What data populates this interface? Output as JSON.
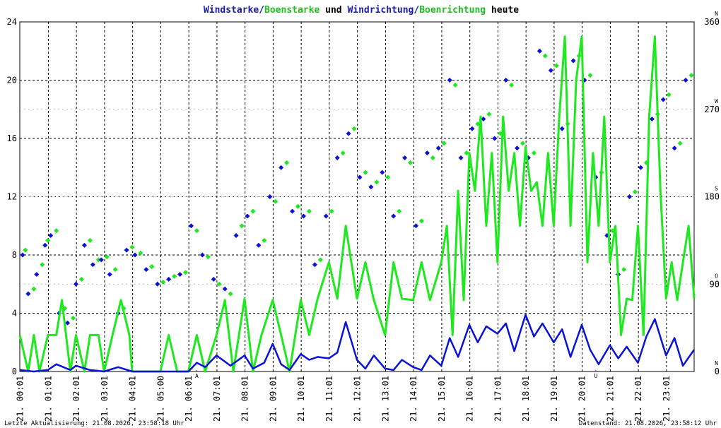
{
  "title": {
    "part1": "Windstarke/",
    "part2": "Boenstarke",
    "part3": " und ",
    "part4": "Windrichtung/",
    "part5": "Boenrichtung",
    "part6": " heute"
  },
  "footer": {
    "left": "Letzte Aktualisierung: 21.08.2026, 23:58:18 Uhr",
    "right": "Datenstand: 21.08.2026, 23:58:12 Uhr"
  },
  "markers": {
    "sunrise": "A",
    "sunset": "U"
  },
  "colors": {
    "wind": "#0a12d6",
    "gust": "#1ee81e",
    "grid": "#000000",
    "marker": "#cc0000",
    "title_blue": "#1a1aa8",
    "title_green": "#22bb22"
  },
  "chart_data": {
    "type": "line",
    "ylim_left": [
      0,
      24
    ],
    "yticks_left": [
      "0",
      "4",
      "8",
      "12",
      "16",
      "20",
      "24"
    ],
    "ylim_right": [
      0,
      360
    ],
    "yticks_right": [
      "0",
      "90",
      "180",
      "270",
      "360"
    ],
    "right_compass": [
      "N",
      "O",
      "S",
      "W",
      "N"
    ],
    "x_labels": [
      "21. 00:01",
      "21. 01:01",
      "21. 02:01",
      "21. 03:01",
      "21. 04:01",
      "21. 05:00",
      "21. 06:01",
      "21. 07:01",
      "21. 08:01",
      "21. 09:01",
      "21. 10:01",
      "21. 11:01",
      "21. 12:01",
      "21. 13:01",
      "21. 14:01",
      "21. 15:01",
      "21. 16:01",
      "21. 17:01",
      "21. 18:01",
      "21. 19:01",
      "21. 20:01",
      "21. 21:01",
      "21. 22:01",
      "21. 23:01"
    ],
    "grid": true,
    "sunrise_hour": 6.3,
    "sunset_hour": 20.5,
    "series_wind": {
      "hours": [
        0,
        0.5,
        1,
        1.3,
        1.8,
        2,
        2.5,
        3,
        3.5,
        4,
        5,
        6,
        6.3,
        6.6,
        7,
        7.5,
        8,
        8.3,
        8.7,
        9,
        9.3,
        9.6,
        10,
        10.3,
        10.6,
        11,
        11.3,
        11.6,
        12,
        12.3,
        12.6,
        13,
        13.3,
        13.6,
        14,
        14.3,
        14.6,
        15,
        15.3,
        15.6,
        16,
        16.3,
        16.6,
        17,
        17.3,
        17.6,
        18,
        18.3,
        18.6,
        19,
        19.3,
        19.6,
        20,
        20.3,
        20.6,
        21,
        21.3,
        21.6,
        22,
        22.3,
        22.6,
        23,
        23.3,
        23.6,
        24
      ],
      "values": [
        0.1,
        0,
        0.1,
        0.5,
        0.1,
        0.4,
        0.1,
        0,
        0.3,
        0,
        0,
        0,
        0.6,
        0.3,
        1.1,
        0.4,
        1.1,
        0.2,
        0.6,
        1.9,
        0.5,
        0.1,
        1.2,
        0.8,
        1.0,
        0.9,
        1.3,
        3.4,
        0.8,
        0.2,
        1.1,
        0.2,
        0.1,
        0.8,
        0.3,
        0.1,
        1.1,
        0.4,
        2.3,
        1.0,
        3.2,
        2.0,
        3.1,
        2.6,
        3.3,
        1.4,
        3.9,
        2.4,
        3.3,
        2.0,
        2.9,
        1.0,
        3.2,
        1.5,
        0.5,
        1.8,
        0.9,
        1.7,
        0.6,
        2.4,
        3.6,
        1.1,
        2.3,
        0.4,
        1.5
      ]
    },
    "series_gust": {
      "hours": [
        0,
        0.3,
        0.5,
        0.7,
        1,
        1.3,
        1.5,
        1.8,
        2,
        2.3,
        2.5,
        2.8,
        3,
        3.3,
        3.6,
        3.9,
        4,
        5,
        5.3,
        5.6,
        6,
        6.3,
        6.6,
        7,
        7.3,
        7.6,
        8,
        8.3,
        8.6,
        9,
        9.3,
        9.6,
        10,
        10.3,
        10.6,
        11,
        11.3,
        11.6,
        12,
        12.3,
        12.6,
        13,
        13.3,
        13.6,
        14,
        14.3,
        14.6,
        15,
        15.2,
        15.4,
        15.6,
        15.8,
        16,
        16.2,
        16.4,
        16.6,
        16.8,
        17,
        17.2,
        17.4,
        17.6,
        17.8,
        18,
        18.2,
        18.4,
        18.6,
        18.8,
        19,
        19.2,
        19.4,
        19.6,
        19.8,
        20,
        20.2,
        20.4,
        20.6,
        20.8,
        21,
        21.2,
        21.4,
        21.6,
        21.8,
        22,
        22.2,
        22.4,
        22.6,
        22.8,
        23,
        23.2,
        23.4,
        23.6,
        23.8,
        24
      ],
      "values": [
        2.5,
        0,
        2.5,
        0,
        2.5,
        2.5,
        4.9,
        0,
        2.5,
        0,
        2.5,
        2.5,
        0,
        2.5,
        4.9,
        2.5,
        0,
        0,
        2.5,
        0,
        0,
        2.5,
        0,
        2.5,
        4.9,
        0,
        5.0,
        0,
        2.5,
        4.9,
        2.5,
        0,
        4.9,
        2.5,
        5.0,
        7.5,
        5.0,
        10.0,
        5.0,
        7.5,
        4.9,
        2.5,
        7.5,
        5.0,
        4.9,
        7.5,
        4.9,
        7.5,
        10.0,
        2.5,
        12.4,
        4.9,
        15.0,
        12.4,
        17.5,
        10.0,
        15.0,
        7.5,
        17.5,
        12.4,
        15.0,
        10.0,
        15.4,
        12.4,
        13.0,
        10.0,
        15.0,
        10.0,
        17.5,
        23.0,
        10.0,
        20.0,
        23.0,
        7.5,
        15.0,
        10.0,
        17.5,
        7.5,
        10.0,
        2.5,
        5.0,
        4.9,
        10.0,
        2.5,
        17.5,
        23.0,
        12.4,
        5.0,
        7.5,
        4.9,
        7.5,
        10.0,
        5.0
      ]
    },
    "scatter_wind_dir": {
      "hours": [
        0.1,
        0.3,
        0.6,
        0.9,
        1.1,
        1.4,
        1.7,
        2.0,
        2.3,
        2.6,
        2.9,
        3.2,
        3.5,
        3.8,
        4.1,
        4.5,
        4.9,
        5.3,
        5.7,
        6.1,
        6.5,
        6.9,
        7.3,
        7.7,
        8.1,
        8.5,
        8.9,
        9.3,
        9.7,
        10.1,
        10.5,
        10.9,
        11.3,
        11.7,
        12.1,
        12.5,
        12.9,
        13.3,
        13.7,
        14.1,
        14.5,
        14.9,
        15.3,
        15.7,
        16.1,
        16.5,
        16.9,
        17.3,
        17.7,
        18.1,
        18.5,
        18.9,
        19.3,
        19.7,
        20.1,
        20.5,
        20.9,
        21.3,
        21.7,
        22.1,
        22.5,
        22.9,
        23.3,
        23.7
      ],
      "values": [
        120,
        80,
        100,
        130,
        140,
        60,
        50,
        90,
        130,
        110,
        115,
        100,
        60,
        125,
        120,
        105,
        90,
        95,
        100,
        150,
        120,
        95,
        85,
        140,
        160,
        130,
        180,
        210,
        165,
        160,
        110,
        160,
        220,
        245,
        200,
        190,
        205,
        160,
        220,
        150,
        225,
        230,
        300,
        220,
        250,
        260,
        240,
        300,
        230,
        220,
        330,
        310,
        250,
        320,
        300,
        200,
        140,
        100,
        180,
        210,
        260,
        280,
        230,
        300
      ]
    },
    "scatter_gust_dir": {
      "hours": [
        0.2,
        0.5,
        0.8,
        1.0,
        1.3,
        1.6,
        1.9,
        2.2,
        2.5,
        2.8,
        3.1,
        3.4,
        3.7,
        4.0,
        4.3,
        4.7,
        5.1,
        5.5,
        5.9,
        6.3,
        6.7,
        7.1,
        7.5,
        7.9,
        8.3,
        8.7,
        9.1,
        9.5,
        9.9,
        10.3,
        10.7,
        11.1,
        11.5,
        11.9,
        12.3,
        12.7,
        13.1,
        13.5,
        13.9,
        14.3,
        14.7,
        15.1,
        15.5,
        15.9,
        16.3,
        16.7,
        17.1,
        17.5,
        17.9,
        18.3,
        18.7,
        19.1,
        19.5,
        19.9,
        20.3,
        20.7,
        21.1,
        21.5,
        21.9,
        22.3,
        22.7,
        23.1,
        23.5,
        23.9
      ],
      "values": [
        125,
        85,
        110,
        135,
        145,
        65,
        55,
        95,
        135,
        115,
        118,
        105,
        65,
        128,
        122,
        108,
        92,
        98,
        102,
        145,
        118,
        90,
        80,
        150,
        165,
        135,
        175,
        215,
        170,
        165,
        115,
        165,
        225,
        250,
        205,
        195,
        200,
        165,
        215,
        155,
        220,
        235,
        295,
        225,
        255,
        265,
        245,
        295,
        235,
        225,
        325,
        315,
        255,
        325,
        305,
        205,
        145,
        105,
        185,
        215,
        265,
        285,
        235,
        305
      ]
    }
  }
}
